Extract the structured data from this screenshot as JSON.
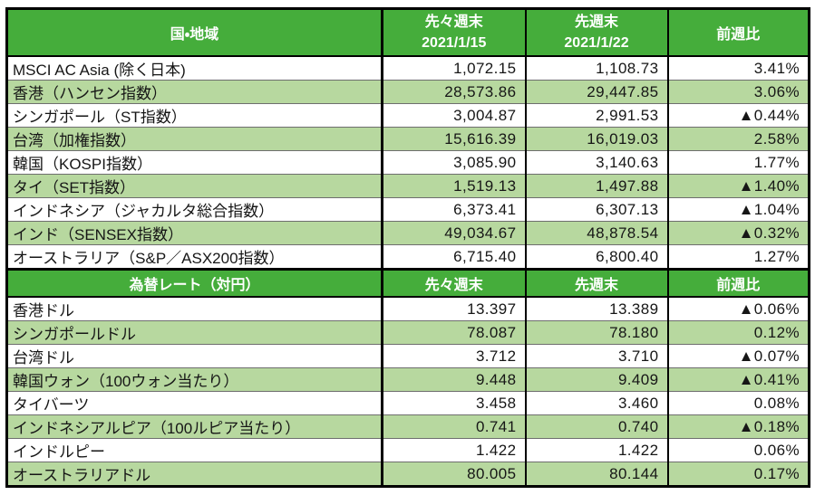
{
  "colors": {
    "header_green": "#45ad3b",
    "row_alt_green": "#b7d89f",
    "negative_red": "#e60000",
    "separator_gray": "#6e6e6e",
    "text_dark": "#161616"
  },
  "indices": {
    "header": {
      "col1": "国・地域",
      "col2_line1": "先々週末",
      "col2_line2": "2021/1/15",
      "col3_line1": "先週末",
      "col3_line2": "2021/1/22",
      "col4": "前週比"
    },
    "rows": [
      {
        "name": "MSCI AC Asia (除く日本)",
        "prev2": "1,072.15",
        "prev": "1,108.73",
        "chg": "3.41%"
      },
      {
        "name": "香港（ハンセン指数）",
        "prev2": "28,573.86",
        "prev": "29,447.85",
        "chg": "3.06%"
      },
      {
        "name": "シンガポール（ST指数）",
        "prev2": "3,004.87",
        "prev": "2,991.53",
        "chg": "▲0.44%"
      },
      {
        "name": "台湾（加権指数）",
        "prev2": "15,616.39",
        "prev": "16,019.03",
        "chg": "2.58%"
      },
      {
        "name": "韓国（KOSPI指数）",
        "prev2": "3,085.90",
        "prev": "3,140.63",
        "chg": "1.77%"
      },
      {
        "name": "タイ（SET指数）",
        "prev2": "1,519.13",
        "prev": "1,497.88",
        "chg": "▲1.40%"
      },
      {
        "name": "インドネシア（ジャカルタ総合指数）",
        "prev2": "6,373.41",
        "prev": "6,307.13",
        "chg": "▲1.04%"
      },
      {
        "name": "インド（SENSEX指数）",
        "prev2": "49,034.67",
        "prev": "48,878.54",
        "chg": "▲0.32%"
      },
      {
        "name": "オーストラリア（S&P／ASX200指数）",
        "prev2": "6,715.40",
        "prev": "6,800.40",
        "chg": "1.27%"
      }
    ]
  },
  "fx": {
    "header": {
      "col1": "為替レート（対円）",
      "col2": "先々週末",
      "col3": "先週末",
      "col4": "前週比"
    },
    "rows": [
      {
        "name": "香港ドル",
        "prev2": "13.397",
        "prev": "13.389",
        "chg": "▲0.06%"
      },
      {
        "name": "シンガポールドル",
        "prev2": "78.087",
        "prev": "78.180",
        "chg": "0.12%"
      },
      {
        "name": "台湾ドル",
        "prev2": "3.712",
        "prev": "3.710",
        "chg": "▲0.07%"
      },
      {
        "name": "韓国ウォン（100ウォン当たり）",
        "prev2": "9.448",
        "prev": "9.409",
        "chg": "▲0.41%"
      },
      {
        "name": "タイバーツ",
        "prev2": "3.458",
        "prev": "3.460",
        "chg": "0.08%"
      },
      {
        "name": "インドネシアルピア（100ルピア当たり）",
        "prev2": "0.741",
        "prev": "0.740",
        "chg": "▲0.18%"
      },
      {
        "name": "インドルピー",
        "prev2": "1.422",
        "prev": "1.422",
        "chg": "0.06%"
      },
      {
        "name": "オーストラリアドル",
        "prev2": "80.005",
        "prev": "80.144",
        "chg": "0.17%"
      }
    ]
  }
}
